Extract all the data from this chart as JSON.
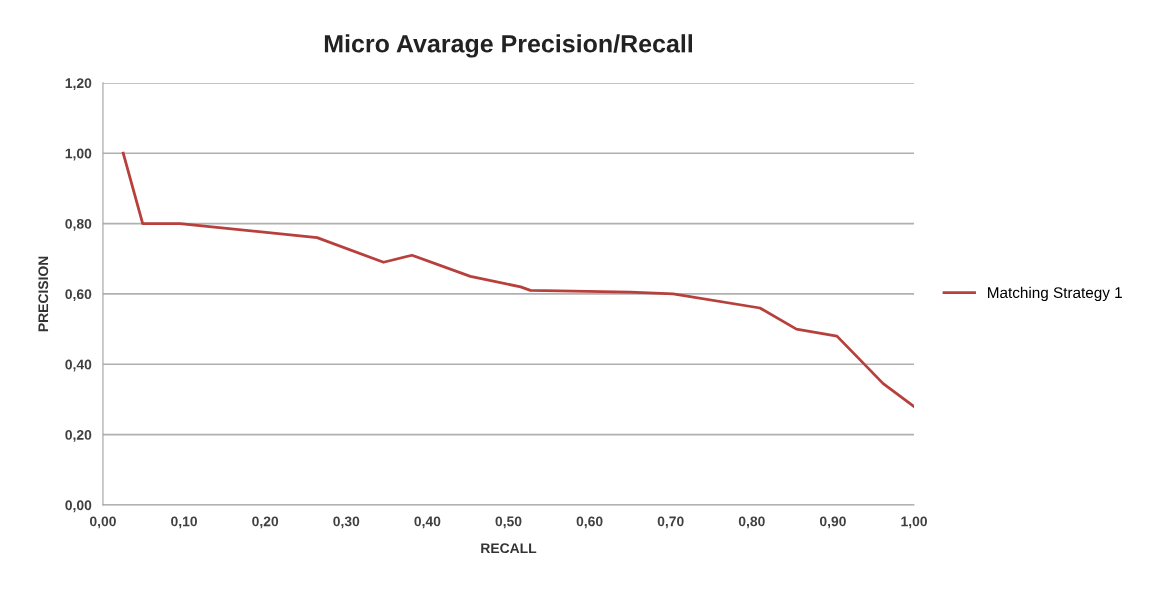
{
  "chart_data": {
    "type": "line",
    "title": "Micro Avarage Precision/Recall",
    "xlabel": "RECALL",
    "ylabel": "PRECISION",
    "series": [
      {
        "name": "Matching Strategy 1",
        "color": "#b8403c",
        "x": [
          0.025,
          0.049,
          0.095,
          0.264,
          0.346,
          0.381,
          0.453,
          0.515,
          0.527,
          0.65,
          0.703,
          0.81,
          0.855,
          0.905,
          0.962,
          1.0
        ],
        "values": [
          1.0,
          0.8,
          0.8,
          0.76,
          0.69,
          0.71,
          0.65,
          0.62,
          0.61,
          0.605,
          0.6,
          0.56,
          0.5,
          0.48,
          0.345,
          0.28
        ]
      }
    ],
    "xlim": [
      0,
      1
    ],
    "ylim": [
      0,
      1.2
    ],
    "xticks": [
      {
        "value": 0,
        "label": "0,00"
      },
      {
        "value": 0.1,
        "label": "0,10"
      },
      {
        "value": 0.2,
        "label": "0,20"
      },
      {
        "value": 0.3,
        "label": "0,30"
      },
      {
        "value": 0.4,
        "label": "0,40"
      },
      {
        "value": 0.5,
        "label": "0,50"
      },
      {
        "value": 0.6,
        "label": "0,60"
      },
      {
        "value": 0.7,
        "label": "0,70"
      },
      {
        "value": 0.8,
        "label": "0,80"
      },
      {
        "value": 0.9,
        "label": "0,90"
      },
      {
        "value": 1,
        "label": "1,00"
      }
    ],
    "yticks": [
      {
        "value": 0,
        "label": "0,00"
      },
      {
        "value": 0.2,
        "label": "0,20"
      },
      {
        "value": 0.4,
        "label": "0,40"
      },
      {
        "value": 0.6,
        "label": "0,60"
      },
      {
        "value": 0.8,
        "label": "0,80"
      },
      {
        "value": 1,
        "label": "1,00"
      },
      {
        "value": 1.2,
        "label": "1,20"
      }
    ],
    "grid": "y",
    "legend": "right",
    "marker": "none",
    "line_style": "solid"
  }
}
